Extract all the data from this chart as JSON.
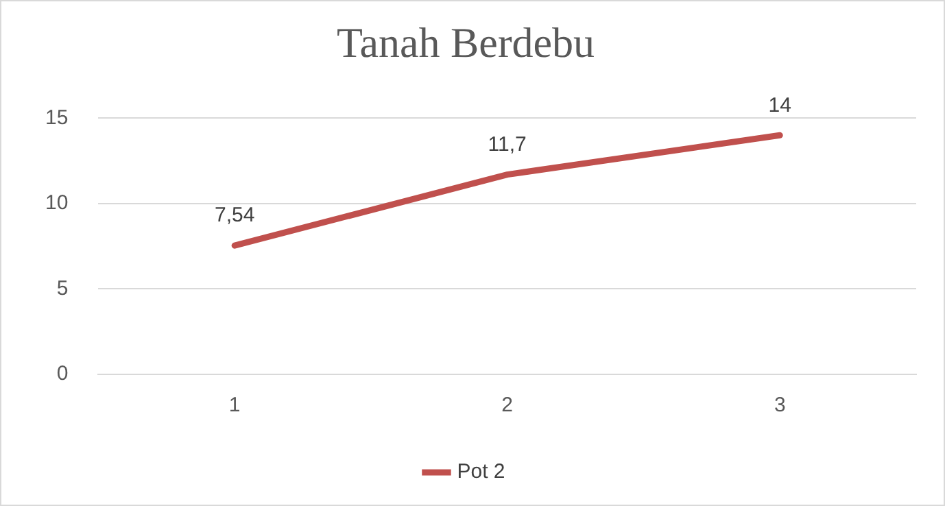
{
  "chart_data": {
    "type": "line",
    "title": "Tanah Berdebu",
    "categories": [
      "1",
      "2",
      "3"
    ],
    "series": [
      {
        "name": "Pot 2",
        "color": "#c0504d",
        "values": [
          7.54,
          11.7,
          14
        ],
        "value_labels": [
          "7,54",
          "11,7",
          "14"
        ]
      }
    ],
    "ylim": [
      0,
      15
    ],
    "yticks": [
      0,
      5,
      10,
      15
    ],
    "grid": "y",
    "legend": "bottom",
    "marker": "none",
    "line_style": "solid"
  }
}
